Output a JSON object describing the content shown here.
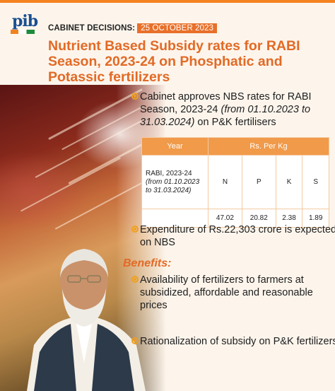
{
  "header": {
    "logo_text": "pib",
    "kicker_label": "CABINET DECISIONS:",
    "kicker_date": "25 OCTOBER 2023",
    "title": "Nutrient Based Subsidy rates for RABI Season, 2023-24 on Phosphatic and Potassic fertilizers"
  },
  "bullets": {
    "b1_text": "Cabinet approves NBS rates for RABI Season, 2023-24 ",
    "b1_italic": "(from 01.10.2023 to 31.03.2024)",
    "b1_tail": " on P&K fertilisers",
    "b2_text": "Expenditure of Rs.22,303 crore is expected on NBS"
  },
  "table": {
    "header_year": "Year",
    "header_rate": "Rs. Per Kg",
    "year_label": "RABI, 2023-24",
    "year_range": "(from 01.10.2023 to 31.03.2024)",
    "nutrients": [
      "N",
      "P",
      "K",
      "S"
    ],
    "rates": [
      "47.02",
      "20.82",
      "2.38",
      "1.89"
    ]
  },
  "benefits": {
    "heading": "Benefits:",
    "items": [
      "Availability of fertilizers to farmers at subsidized, affordable and reasonable prices",
      "Rationalization of subsidy on P&K fertilizers"
    ]
  },
  "colors": {
    "accent": "#e26a26",
    "table_header": "#f09a4a",
    "bullet": "#f0a020",
    "background": "#fdf5ec"
  }
}
